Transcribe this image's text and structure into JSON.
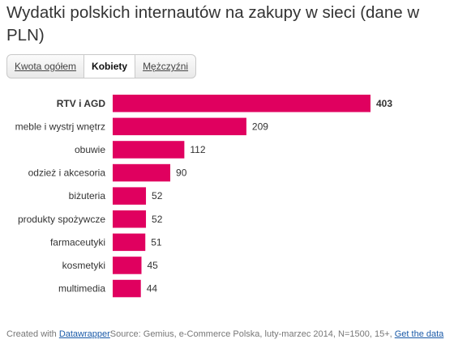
{
  "title": "Wydatki polskich internautów na zakupy w sieci (dane w PLN)",
  "tabs": [
    {
      "label": "Kwota ogółem",
      "active": false
    },
    {
      "label": "Kobiety",
      "active": true
    },
    {
      "label": "Mężczyźni",
      "active": false
    }
  ],
  "chart_data": {
    "type": "bar",
    "orientation": "horizontal",
    "categories": [
      "RTV i AGD",
      "meble i wystrj wnętrz",
      "obuwie",
      "odzież i akcesoria",
      "biżuteria",
      "produkty spożywcze",
      "farmaceutyki",
      "kosmetyki",
      "multimedia"
    ],
    "values": [
      403,
      209,
      112,
      90,
      52,
      52,
      51,
      45,
      44
    ],
    "highlighted_category": "RTV i AGD",
    "bar_color": "#e0005f",
    "xlim": [
      0,
      403
    ],
    "grid": false
  },
  "footer": {
    "created_with": "Created with ",
    "tool_link": "Datawrapper",
    "source": "Source: Gemius, e-Commerce Polska, luty-marzec 2014, N=1500, 15+, ",
    "data_link": "Get the data"
  }
}
